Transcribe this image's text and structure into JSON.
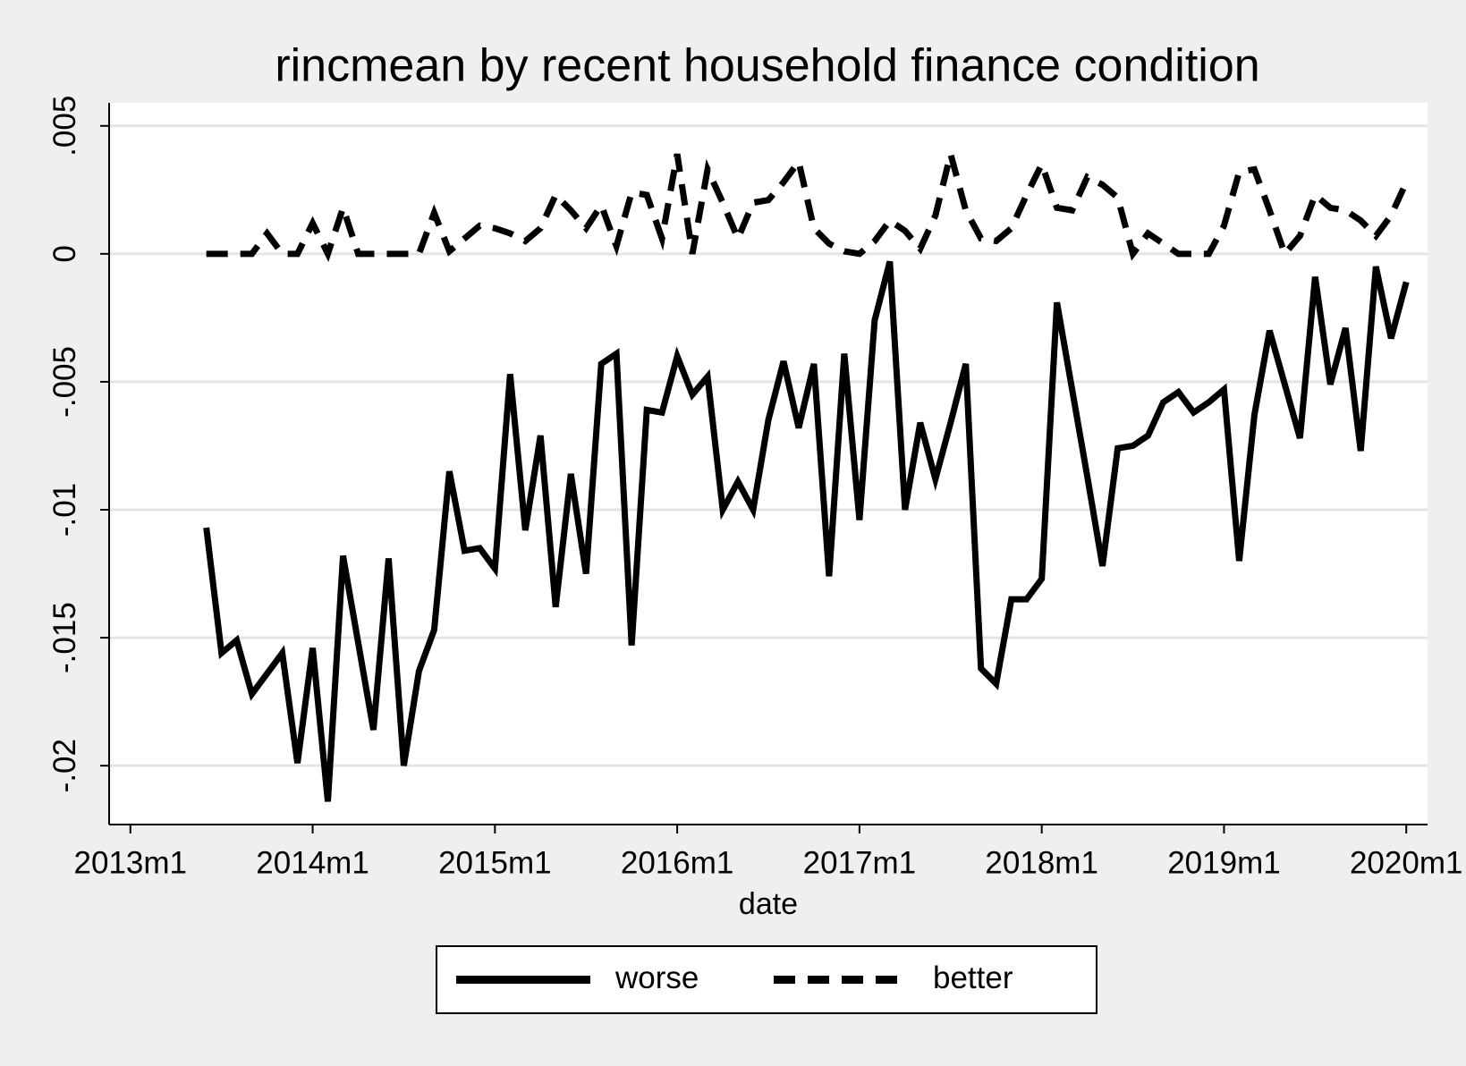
{
  "chart_data": {
    "type": "line",
    "title": "rincmean by recent household finance condition",
    "x_label": "date",
    "x": [
      641,
      642,
      643,
      644,
      645,
      646,
      647,
      648,
      649,
      650,
      651,
      652,
      653,
      654,
      655,
      656,
      657,
      658,
      659,
      660,
      661,
      662,
      663,
      664,
      665,
      666,
      667,
      668,
      669,
      670,
      671,
      672,
      673,
      674,
      675,
      676,
      677,
      678,
      679,
      680,
      681,
      682,
      683,
      684,
      685,
      686,
      687,
      688,
      689,
      690,
      691,
      692,
      693,
      694,
      695,
      696,
      697,
      698,
      699,
      700,
      701,
      702,
      703,
      704,
      705,
      706,
      707,
      708,
      709,
      710,
      711,
      712,
      713,
      714,
      715,
      716,
      717,
      718,
      719,
      720
    ],
    "series": [
      {
        "name": "worse",
        "color": "#000000",
        "line_style": "solid",
        "values": [
          -0.0107,
          -0.0156,
          -0.0151,
          -0.0172,
          -0.0164,
          -0.0156,
          -0.0199,
          -0.0154,
          -0.0214,
          -0.0118,
          -0.0152,
          -0.0186,
          -0.0119,
          -0.02,
          -0.0163,
          -0.0147,
          -0.0085,
          -0.0116,
          -0.0115,
          -0.0123,
          -0.0047,
          -0.0108,
          -0.0071,
          -0.0138,
          -0.0086,
          -0.0125,
          -0.0043,
          -0.0039,
          -0.0153,
          -0.0061,
          -0.0062,
          -0.004,
          -0.0055,
          -0.0048,
          -0.01,
          -0.0089,
          -0.01,
          -0.0065,
          -0.0042,
          -0.0068,
          -0.0043,
          -0.0126,
          -0.0039,
          -0.0104,
          -0.0026,
          -0.0003,
          -0.01,
          -0.0066,
          -0.0088,
          -0.0066,
          -0.0043,
          -0.0162,
          -0.0168,
          -0.0135,
          -0.0135,
          -0.0127,
          -0.0019,
          -0.0053,
          -0.0087,
          -0.0122,
          -0.0076,
          -0.0075,
          -0.0071,
          -0.0058,
          -0.0054,
          -0.0062,
          -0.0058,
          -0.0053,
          -0.012,
          -0.0063,
          -0.003,
          -0.0051,
          -0.0072,
          -0.0009,
          -0.0051,
          -0.0029,
          -0.0077,
          -0.0005,
          -0.0033,
          -0.0011
        ]
      },
      {
        "name": "better",
        "color": "#000000",
        "line_style": "dashed",
        "values": [
          0,
          0,
          0,
          0,
          0.0008,
          0,
          0,
          0.0012,
          0,
          0.0018,
          0,
          0,
          0,
          0,
          0,
          0.0016,
          0.0001,
          0.0006,
          0.0011,
          0.001,
          0.0008,
          0.0005,
          0.001,
          0.0023,
          0.0017,
          0.001,
          0.0019,
          0.0003,
          0.0024,
          0.0023,
          0.0006,
          0.0039,
          0,
          0.0033,
          0.002,
          0.0006,
          0.002,
          0.0021,
          0.0028,
          0.0036,
          0.001,
          0.0004,
          0.0001,
          0,
          0.0005,
          0.0013,
          0.0009,
          0.0002,
          0.0015,
          0.0039,
          0.0017,
          0.0006,
          0.0005,
          0.001,
          0.0023,
          0.0035,
          0.0018,
          0.0017,
          0.003,
          0.0027,
          0.0022,
          0,
          0.0008,
          0.0004,
          0,
          0,
          0,
          0.0011,
          0.0032,
          0.0033,
          0.0017,
          0,
          0.0007,
          0.0023,
          0.0018,
          0.0017,
          0.0013,
          0.0007,
          0.0015,
          0.0028
        ]
      }
    ],
    "xlim": [
      634.6,
      721.4
    ],
    "xticks": [
      {
        "value": 636,
        "label": "2013m1"
      },
      {
        "value": 648,
        "label": "2014m1"
      },
      {
        "value": 660,
        "label": "2015m1"
      },
      {
        "value": 672,
        "label": "2016m1"
      },
      {
        "value": 684,
        "label": "2017m1"
      },
      {
        "value": 696,
        "label": "2018m1"
      },
      {
        "value": 708,
        "label": "2019m1"
      },
      {
        "value": 720,
        "label": "2020m1"
      }
    ],
    "ylim": [
      -0.0223,
      0.0059
    ],
    "yticks": [
      {
        "value": 0.005,
        "label": ".005"
      },
      0,
      {
        "value": -0.005,
        "label": "-.005"
      },
      {
        "value": -0.01,
        "label": "-.01"
      },
      {
        "value": -0.015,
        "label": "-.015"
      },
      {
        "value": -0.02,
        "label": "-.02"
      }
    ],
    "grid": true,
    "legend_position": "bottom"
  }
}
